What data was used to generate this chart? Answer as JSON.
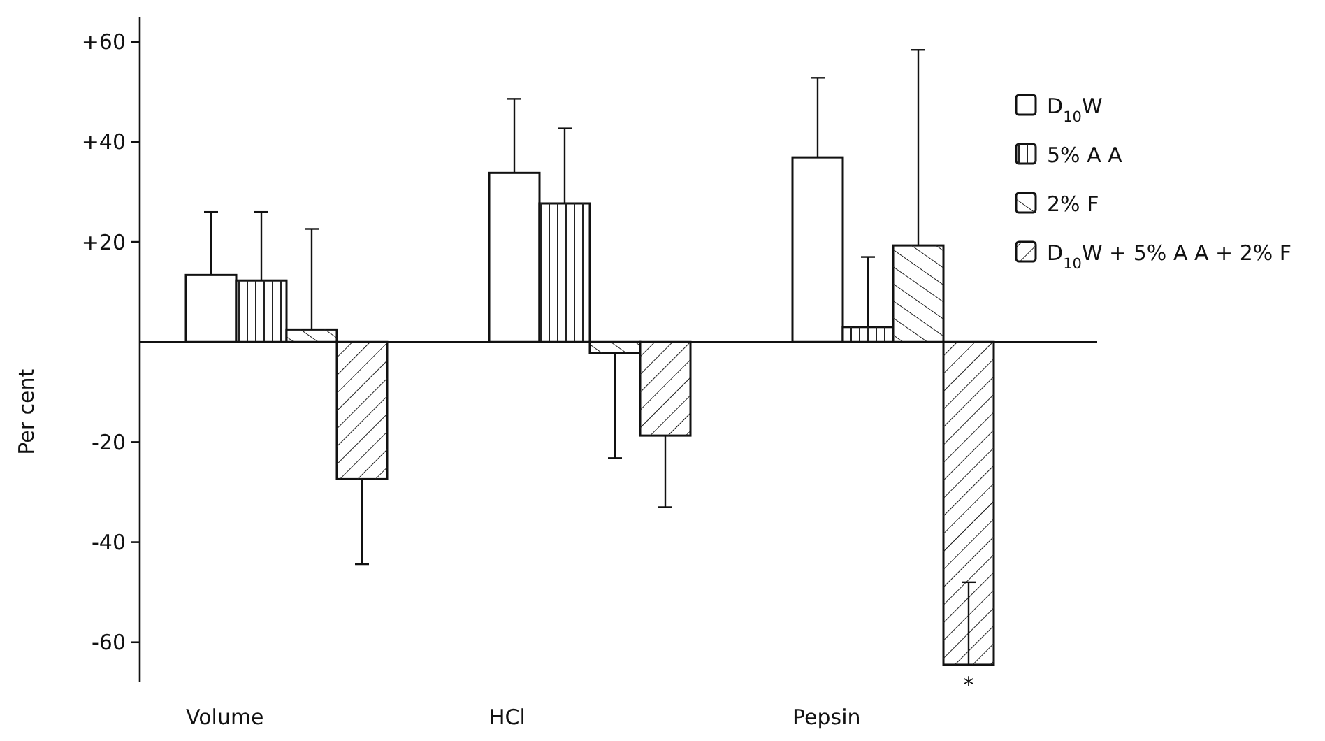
{
  "chart_data": {
    "type": "bar",
    "ylabel": "Per cent",
    "categories": [
      "Volume",
      "HCl",
      "Pepsin"
    ],
    "series": [
      {
        "name": "D$_{10}$W",
        "color": "#ffffff",
        "values": [
          13.4,
          33.8,
          36.9
        ],
        "errors": [
          [
            13.4,
            26
          ],
          [
            33.8,
            48.6
          ],
          [
            36.9,
            52.8
          ]
        ]
      },
      {
        "name": "5% A A",
        "color": "#ffffff",
        "values": [
          12.3,
          27.7,
          3
        ],
        "errors": [
          [
            12.3,
            26
          ],
          [
            27.7,
            42.7
          ],
          [
            3,
            17
          ]
        ]
      },
      {
        "name": "2% F",
        "color": "#ffffff",
        "values": [
          2.5,
          -2.2,
          19.3
        ],
        "errors": [
          [
            2.5,
            22.6
          ],
          [
            -23.2,
            -2.2
          ],
          [
            19.3,
            58.4
          ]
        ]
      },
      {
        "name": "D$_{10}$W + 5% A A + 2% F",
        "color": "#ffffff",
        "values": [
          -27.4,
          -18.7,
          -64.5
        ],
        "errors": [
          [
            -44.4,
            -27.4
          ],
          [
            -33,
            -18.7
          ],
          [
            -64.5,
            -48
          ]
        ]
      }
    ],
    "ylim": [
      -68,
      65
    ],
    "yticks": [
      {
        "value": 60,
        "label": "+60"
      },
      {
        "value": 40,
        "label": "+40"
      },
      {
        "value": 20,
        "label": "+20"
      },
      -20,
      -40,
      -60
    ],
    "annotations": [
      "*"
    ],
    "legend": "top right",
    "grid": false
  }
}
